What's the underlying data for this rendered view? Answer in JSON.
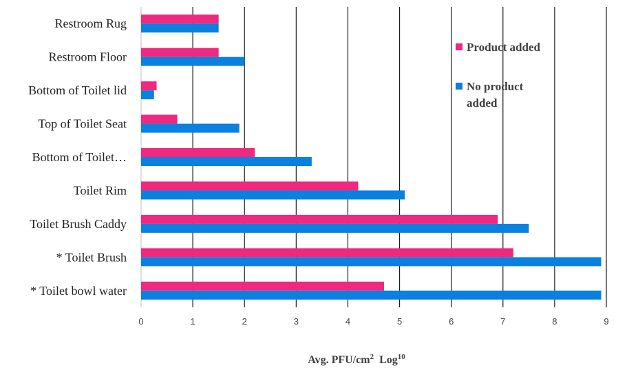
{
  "chart_data": {
    "type": "bar",
    "orientation": "horizontal",
    "categories": [
      "Restroom Rug",
      "Restroom Floor",
      "Bottom of Toilet lid",
      "Top of Toilet Seat",
      "Bottom of Toilet…",
      "Toilet Rim",
      "Toilet Brush Caddy",
      "* Toilet Brush",
      "* Toilet bowl water"
    ],
    "series": [
      {
        "name": "Product added",
        "color": "#f0287f",
        "values": [
          1.5,
          1.5,
          0.3,
          0.7,
          2.2,
          4.2,
          6.9,
          7.2,
          4.7
        ]
      },
      {
        "name": "No product added",
        "color": "#0a80e0",
        "values": [
          1.5,
          2.0,
          0.25,
          1.9,
          3.3,
          5.1,
          7.5,
          8.9,
          8.9
        ]
      }
    ],
    "legend_lines": [
      [
        "Product added"
      ],
      [
        "No product",
        "added"
      ]
    ],
    "xlim": [
      0,
      9
    ],
    "xticks": [
      "0",
      "1",
      "2",
      "3",
      "4",
      "5",
      "6",
      "7",
      "8",
      "9"
    ],
    "xlabel": {
      "main": "Avg. PFU/cm",
      "sup1": "2",
      "mid": "  Log",
      "sup2": "10"
    },
    "grid": "vertical",
    "legend_position": "right"
  }
}
